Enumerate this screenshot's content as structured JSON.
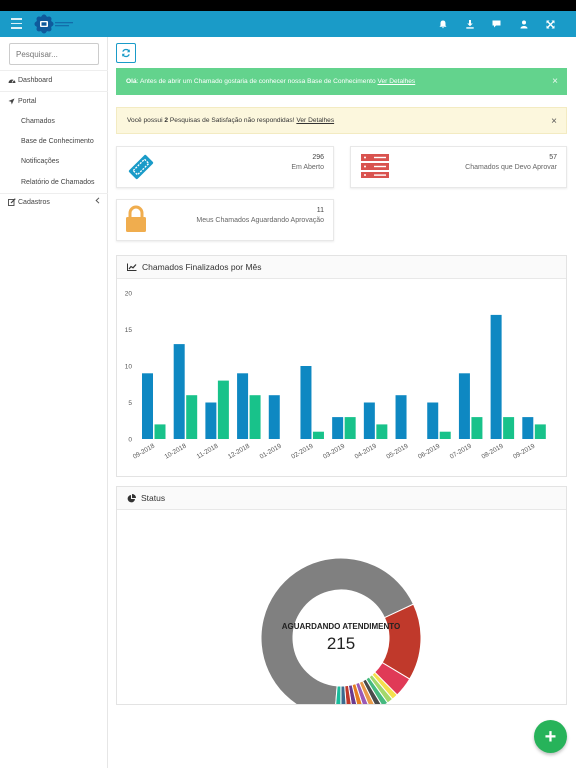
{
  "colors": {
    "topbar": "#1a9bc8",
    "bar_blue": "#0e88c2",
    "bar_green": "#18c28a",
    "success": "#63d38d",
    "fab": "#27b35a"
  },
  "search": {
    "placeholder": "Pesquisar..."
  },
  "sidebar": {
    "dashboard": "Dashboard",
    "portal": "Portal",
    "items": [
      "Chamados",
      "Base de Conhecimento",
      "Notificações",
      "Relatório de Chamados"
    ],
    "cadastros": "Cadastros"
  },
  "top_icons": [
    "bell-icon",
    "download-icon",
    "comment-icon",
    "user-icon",
    "expand-icon"
  ],
  "alerts": {
    "success": {
      "bold": "Olá",
      "text": ": Antes de abrir um Chamado gostaria de conhecer nossa Base de Conhecimento",
      "link": "Ver Detalhes",
      "close": "×"
    },
    "warning": {
      "pre": "Você possui ",
      "bold": "2",
      "text": " Pesquisas de Satisfação não respondidas! ",
      "link": "Ver Detalhes",
      "close": "×"
    }
  },
  "stats": [
    {
      "value": "296",
      "label": "Em Aberto",
      "icon": "ticket-icon"
    },
    {
      "value": "57",
      "label": "Chamados que Devo Aprovar",
      "icon": "server-icon"
    },
    {
      "value": "11",
      "label": "Meus Chamados Aguardando Aprovação",
      "icon": "lock-icon"
    }
  ],
  "chart_panel": {
    "title": "Chamados Finalizados por Mês"
  },
  "chart_data": {
    "type": "bar",
    "categories": [
      "09-2018",
      "10-2018",
      "11-2018",
      "12-2018",
      "01-2019",
      "02-2019",
      "03-2019",
      "04-2019",
      "05-2019",
      "06-2019",
      "07-2019",
      "08-2019",
      "09-2019"
    ],
    "series": [
      {
        "values": [
          9,
          13,
          5,
          9,
          6,
          10,
          3,
          5,
          6,
          5,
          9,
          17,
          3
        ]
      },
      {
        "values": [
          2,
          6,
          8,
          6,
          0,
          1,
          3,
          2,
          0,
          1,
          3,
          3,
          2
        ]
      }
    ],
    "yticks": [
      "0",
      "5",
      "10",
      "15",
      "20"
    ],
    "ylim": [
      0,
      20
    ],
    "grid": false
  },
  "status_panel": {
    "title": "Status",
    "center_label": "AGUARDANDO ATENDIMENTO",
    "center_value": "215"
  },
  "donut": {
    "slices": [
      {
        "value": 215,
        "color": "#808080"
      },
      {
        "value": 50,
        "color": "#c0392b"
      },
      {
        "value": 13,
        "color": "#e03a57"
      },
      {
        "value": 4,
        "color": "#f4e04d"
      },
      {
        "value": 4,
        "color": "#a3d86b"
      },
      {
        "value": 4,
        "color": "#46b97f"
      },
      {
        "value": 4,
        "color": "#4a4a4a"
      },
      {
        "value": 4,
        "color": "#e99a4a"
      },
      {
        "value": 4,
        "color": "#9b59b6"
      },
      {
        "value": 4,
        "color": "#e67e22"
      },
      {
        "value": 4,
        "color": "#6b3a8e"
      },
      {
        "value": 4,
        "color": "#c0392b"
      },
      {
        "value": 4,
        "color": "#3c6b8e"
      },
      {
        "value": 4,
        "color": "#1abc9c"
      }
    ]
  },
  "fab": {
    "label": "+"
  }
}
